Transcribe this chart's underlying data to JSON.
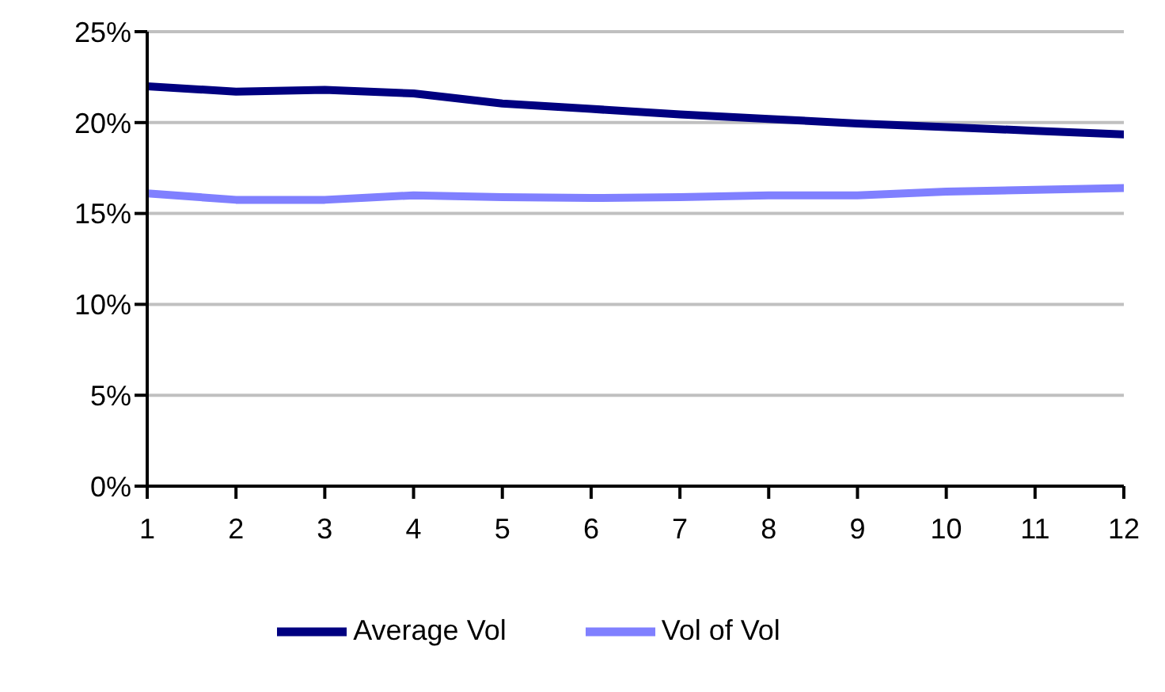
{
  "chart_data": {
    "type": "line",
    "x": [
      1,
      2,
      3,
      4,
      5,
      6,
      7,
      8,
      9,
      10,
      11,
      12
    ],
    "series": [
      {
        "name": "Average Vol",
        "color": "#000080",
        "values": [
          22.0,
          21.7,
          21.8,
          21.6,
          21.05,
          20.75,
          20.45,
          20.2,
          19.95,
          19.75,
          19.55,
          19.35
        ]
      },
      {
        "name": "Vol of Vol",
        "color": "#8080ff",
        "values": [
          16.1,
          15.75,
          15.75,
          16.0,
          15.9,
          15.85,
          15.9,
          16.0,
          16.0,
          16.2,
          16.3,
          16.4
        ]
      }
    ],
    "xlim": [
      1,
      12
    ],
    "xticks": [
      1,
      2,
      3,
      4,
      5,
      6,
      7,
      8,
      9,
      10,
      11,
      12
    ],
    "ylim": [
      0,
      25
    ],
    "yticks": [
      {
        "value": 0,
        "label": "0%"
      },
      {
        "value": 5,
        "label": "5%"
      },
      {
        "value": 10,
        "label": "10%"
      },
      {
        "value": 15,
        "label": "15%"
      },
      {
        "value": 20,
        "label": "20%"
      },
      {
        "value": 25,
        "label": "25%"
      }
    ],
    "grid": "y",
    "legend": "bottom",
    "marker": "none",
    "line_style": "solid"
  }
}
